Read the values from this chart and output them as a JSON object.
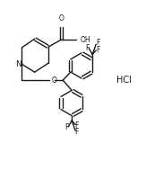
{
  "background_color": "#ffffff",
  "line_color": "#1a1a1a",
  "line_width": 1.0,
  "font_size": 5.5,
  "fig_width": 1.82,
  "fig_height": 2.0,
  "dpi": 100,
  "xlim": [
    0,
    10
  ],
  "ylim": [
    0,
    11
  ]
}
